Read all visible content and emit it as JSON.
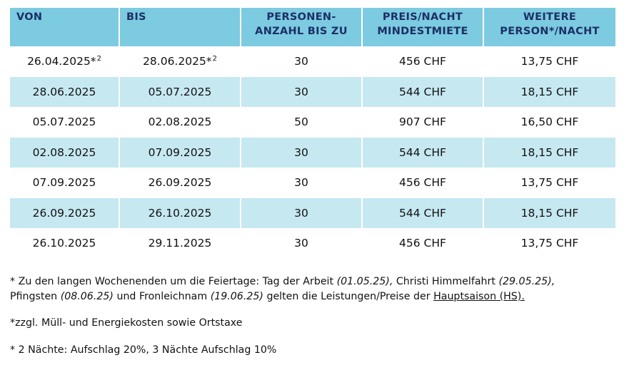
{
  "table": {
    "headers": [
      {
        "line1": "VON",
        "line2": ""
      },
      {
        "line1": "BIS",
        "line2": ""
      },
      {
        "line1": "PERSONEN-",
        "line2": "ANZAHL BIS ZU"
      },
      {
        "line1": "PREIS/NACHT",
        "line2": "MINDESTMIETE"
      },
      {
        "line1": "WEITERE",
        "line2": "PERSON*/NACHT"
      }
    ],
    "rows": [
      {
        "von": "26.04.2025*",
        "von_sup": "2",
        "bis": "28.06.2025*",
        "bis_sup": "2",
        "personen": "30",
        "preis": "456 CHF",
        "weitere": "13,75 CHF"
      },
      {
        "von": "28.06.2025",
        "von_sup": "",
        "bis": "05.07.2025",
        "bis_sup": "",
        "personen": "30",
        "preis": "544 CHF",
        "weitere": "18,15 CHF"
      },
      {
        "von": "05.07.2025",
        "von_sup": "",
        "bis": "02.08.2025",
        "bis_sup": "",
        "personen": "50",
        "preis": "907 CHF",
        "weitere": "16,50 CHF"
      },
      {
        "von": "02.08.2025",
        "von_sup": "",
        "bis": "07.09.2025",
        "bis_sup": "",
        "personen": "30",
        "preis": "544 CHF",
        "weitere": "18,15 CHF"
      },
      {
        "von": "07.09.2025",
        "von_sup": "",
        "bis": "26.09.2025",
        "bis_sup": "",
        "personen": "30",
        "preis": "456 CHF",
        "weitere": "13,75 CHF"
      },
      {
        "von": "26.09.2025",
        "von_sup": "",
        "bis": "26.10.2025",
        "bis_sup": "",
        "personen": "30",
        "preis": "544 CHF",
        "weitere": "18,15 CHF"
      },
      {
        "von": "26.10.2025",
        "von_sup": "",
        "bis": "29.11.2025",
        "bis_sup": "",
        "personen": "30",
        "preis": "456 CHF",
        "weitere": "13,75 CHF"
      }
    ]
  },
  "notes": {
    "holiday": {
      "t1": "* Zu den langen Wochenenden um die Feiertage: Tag der Arbeit ",
      "d1": "(01.05.25),",
      "t2": " Christi Himmelfahrt ",
      "d2": "(29.05.25),",
      "t3": "Pfingsten ",
      "d3": "(08.06.25)",
      "t4": " und Fronleichnam ",
      "d4": "(19.06.25)",
      "t5": " gelten die Leistungen/Preise der ",
      "link": "Hauptsaison (HS).",
      "t6": ""
    },
    "costs": "*zzgl. Müll- und Energiekosten sowie Ortstaxe",
    "surcharge": "* 2 Nächte: Aufschlag 20%, 3 Nächte Aufschlag 10%"
  },
  "colors": {
    "header_bg": "#7ccbe0",
    "header_text": "#1c2f66",
    "stripe_bg": "#c6e8f1"
  }
}
